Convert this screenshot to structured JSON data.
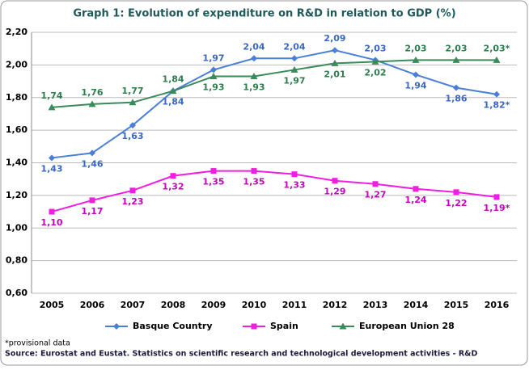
{
  "chart_data": {
    "type": "line",
    "title": "Graph 1: Evolution of expenditure on R&D in relation to GDP (%)",
    "categories": [
      "2005",
      "2006",
      "2007",
      "2008",
      "2009",
      "2010",
      "2011",
      "2012",
      "2013",
      "2014",
      "2015",
      "2016"
    ],
    "series": [
      {
        "name": "Basque Country",
        "color": "#4a7fd8",
        "label_color": "#3a66c4",
        "marker": "diamond",
        "values": [
          1.43,
          1.46,
          1.63,
          1.84,
          1.97,
          2.04,
          2.04,
          2.09,
          2.03,
          1.94,
          1.86,
          1.82
        ],
        "value_labels": [
          "1,43",
          "1,46",
          "1,63",
          "1,84",
          "1,97",
          "2,04",
          "2,04",
          "2,09",
          "2,03",
          "1,94",
          "1,86",
          "1,82*"
        ]
      },
      {
        "name": "Spain",
        "color": "#f01ee0",
        "label_color": "#c800c0",
        "marker": "square",
        "values": [
          1.1,
          1.17,
          1.23,
          1.32,
          1.35,
          1.35,
          1.33,
          1.29,
          1.27,
          1.24,
          1.22,
          1.19
        ],
        "value_labels": [
          "1,10",
          "1,17",
          "1,23",
          "1,32",
          "1,35",
          "1,35",
          "1,33",
          "1,29",
          "1,27",
          "1,24",
          "1,22",
          "1,19*"
        ]
      },
      {
        "name": "European Union 28",
        "color": "#3a8a5a",
        "label_color": "#2e7d4c",
        "marker": "triangle",
        "values": [
          1.74,
          1.76,
          1.77,
          1.84,
          1.93,
          1.93,
          1.97,
          2.01,
          2.02,
          2.03,
          2.03,
          2.03
        ],
        "value_labels": [
          "1,74",
          "1,76",
          "1,77",
          "1,84",
          "1,93",
          "1,93",
          "1,97",
          "2,01",
          "2,02",
          "2,03",
          "2,03",
          "2,03*"
        ]
      }
    ],
    "ylim": [
      0.6,
      2.2
    ],
    "yticks": [
      {
        "value": 0.6,
        "label": "0,60"
      },
      {
        "value": 0.8,
        "label": "0,80"
      },
      {
        "value": 1.0,
        "label": "1,00"
      },
      {
        "value": 1.2,
        "label": "1,20"
      },
      {
        "value": 1.4,
        "label": "1,40"
      },
      {
        "value": 1.6,
        "label": "1,60"
      },
      {
        "value": 1.8,
        "label": "1,80"
      },
      {
        "value": 2.0,
        "label": "2,00"
      },
      {
        "value": 2.2,
        "label": "2,20"
      }
    ],
    "grid": true,
    "legend": "bottom",
    "footnote": "*provisional data",
    "source": "Source: Eurostat and Eustat. Statistics on scientific research and technological development activities - R&D"
  }
}
